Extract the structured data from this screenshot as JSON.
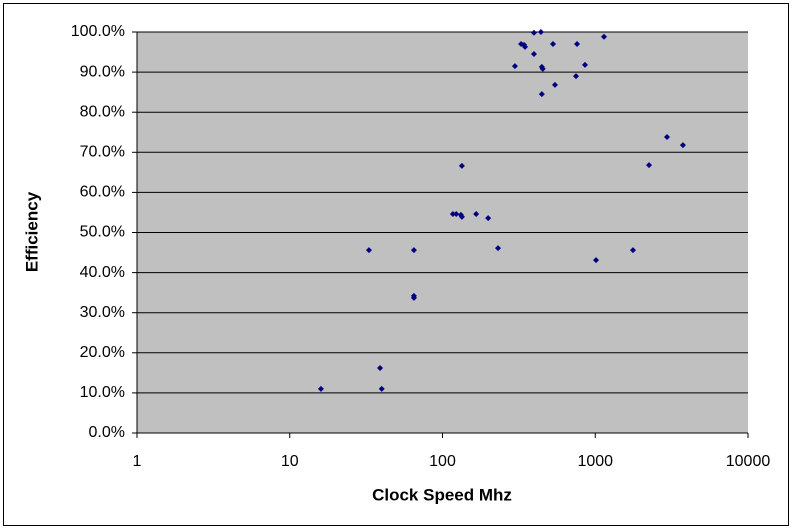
{
  "chart_data": {
    "type": "scatter",
    "x_label": "Clock Speed Mhz",
    "y_label": "Efficiency",
    "x": [
      16,
      33,
      39,
      40,
      65,
      65,
      65,
      117,
      123,
      132,
      134,
      134,
      166,
      199,
      231,
      298,
      327,
      342,
      347,
      397,
      397,
      441,
      447,
      453,
      447,
      529,
      545,
      748,
      760,
      857,
      1012,
      1141,
      1766,
      2250,
      2950,
      3750
    ],
    "values": [
      11.0,
      45.6,
      16.2,
      11.0,
      45.6,
      34.2,
      33.7,
      54.6,
      54.6,
      54.4,
      53.9,
      66.6,
      54.6,
      53.6,
      46.1,
      91.5,
      97.0,
      96.8,
      96.3,
      94.5,
      99.8,
      100.0,
      91.3,
      90.8,
      84.5,
      97.0,
      86.8,
      89.0,
      97.0,
      91.8,
      43.1,
      98.8,
      45.6,
      66.8,
      73.8,
      71.8
    ],
    "color": "#000080",
    "xscale": "log",
    "xlim": [
      1,
      10000
    ],
    "xticks": [
      1,
      10,
      100,
      1000,
      10000
    ],
    "ylim": [
      0,
      100
    ],
    "yticks": [
      {
        "value": 0,
        "label": "0.0%"
      },
      {
        "value": 10,
        "label": "10.0%"
      },
      {
        "value": 20,
        "label": "20.0%"
      },
      {
        "value": 30,
        "label": "30.0%"
      },
      {
        "value": 40,
        "label": "40.0%"
      },
      {
        "value": 50,
        "label": "50.0%"
      },
      {
        "value": 60,
        "label": "60.0%"
      },
      {
        "value": 70,
        "label": "70.0%"
      },
      {
        "value": 80,
        "label": "80.0%"
      },
      {
        "value": 90,
        "label": "90.0%"
      },
      {
        "value": 100,
        "label": "100.0%"
      }
    ],
    "grid": true,
    "plot_background": "#c0c0c0"
  }
}
